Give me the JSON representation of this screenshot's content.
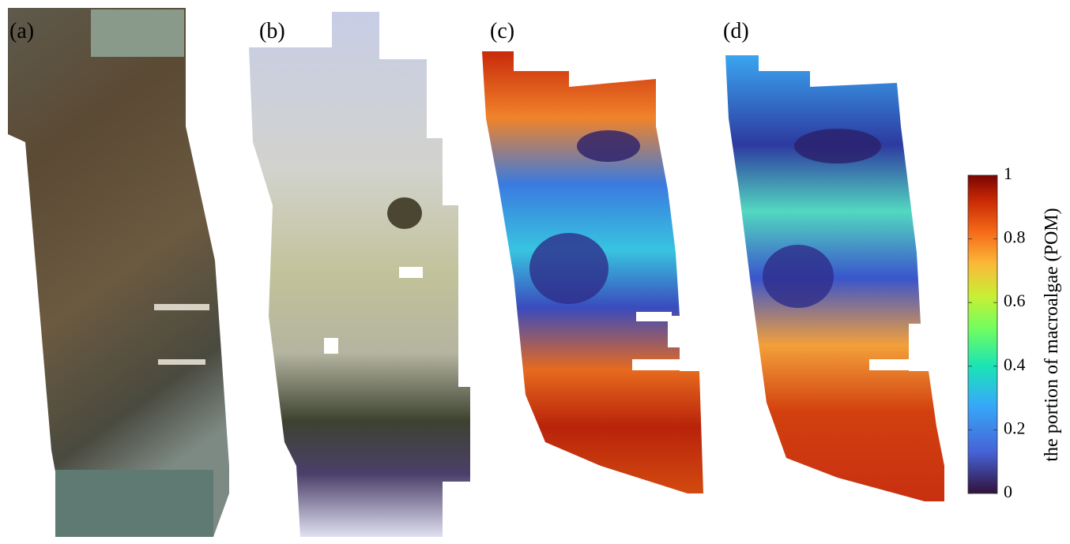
{
  "panels": [
    {
      "label": "(a)"
    },
    {
      "label": "(b)"
    },
    {
      "label": "(c)"
    },
    {
      "label": "(d)"
    }
  ],
  "colorbar": {
    "label": "the portion of macroalgae (POM)",
    "lim": [
      0,
      1
    ],
    "ticks": [
      0,
      0.2,
      0.4,
      0.6,
      0.8,
      1
    ]
  }
}
